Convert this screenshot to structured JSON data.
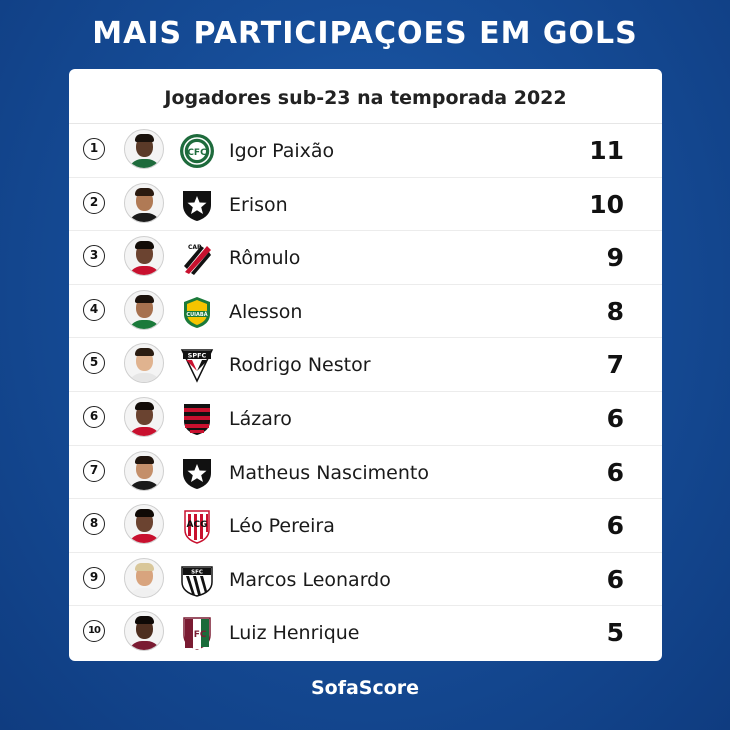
{
  "headline": "MAIS PARTICIPAÇOES EM GOLS",
  "subtitle": "Jogadores sub-23 na temporada 2022",
  "brand": "SofaScore",
  "players": [
    {
      "rank": "1",
      "name": "Igor Paixão",
      "value": "11",
      "club_icon": "coritiba-crest-icon",
      "skin": "#5a3a28",
      "hair": "#1a120c",
      "shirt": "#1e6b3c"
    },
    {
      "rank": "2",
      "name": "Erison",
      "value": "10",
      "club_icon": "botafogo-crest-icon",
      "skin": "#b07a55",
      "hair": "#2a1a10",
      "shirt": "#1a1a1a"
    },
    {
      "rank": "3",
      "name": "Rômulo",
      "value": "9",
      "club_icon": "athletico-paranaense-crest-icon",
      "skin": "#6b4330",
      "hair": "#120c08",
      "shirt": "#c8102e"
    },
    {
      "rank": "4",
      "name": "Alesson",
      "value": "8",
      "club_icon": "cuiaba-crest-icon",
      "skin": "#a7714f",
      "hair": "#1c120c",
      "shirt": "#1b7a3a"
    },
    {
      "rank": "5",
      "name": "Rodrigo Nestor",
      "value": "7",
      "club_icon": "sao-paulo-crest-icon",
      "skin": "#e0b38f",
      "hair": "#2b1d12",
      "shirt": "#e6e6e6"
    },
    {
      "rank": "6",
      "name": "Lázaro",
      "value": "6",
      "club_icon": "flamengo-crest-icon",
      "skin": "#6a4330",
      "hair": "#120c08",
      "shirt": "#c8102e"
    },
    {
      "rank": "7",
      "name": "Matheus Nascimento",
      "value": "6",
      "club_icon": "botafogo-crest-icon",
      "skin": "#c48f6a",
      "hair": "#1f140d",
      "shirt": "#1a1a1a"
    },
    {
      "rank": "8",
      "name": "Léo Pereira",
      "value": "6",
      "club_icon": "atletico-goianiense-crest-icon",
      "skin": "#6b4330",
      "hair": "#100a06",
      "shirt": "#c8102e"
    },
    {
      "rank": "9",
      "name": "Marcos Leonardo",
      "value": "6",
      "club_icon": "santos-crest-icon",
      "skin": "#d8a47e",
      "hair": "#d9c79a",
      "shirt": "#f0f0f0"
    },
    {
      "rank": "10",
      "name": "Luiz Henrique",
      "value": "5",
      "club_icon": "fluminense-crest-icon",
      "skin": "#4e2f20",
      "hair": "#0e0906",
      "shirt": "#7a1b32"
    }
  ],
  "colors": {
    "background": "#164d98",
    "card": "#ffffff",
    "text": "#111111"
  }
}
